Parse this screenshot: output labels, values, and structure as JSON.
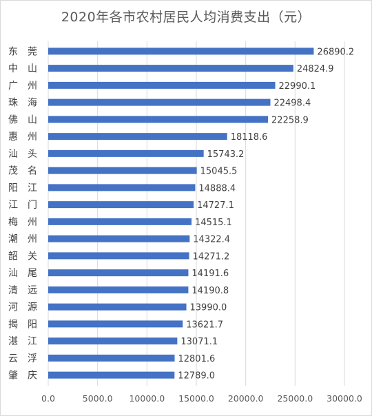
{
  "chart_data": {
    "type": "bar",
    "orientation": "horizontal",
    "title": "2020年各市农村居民人均消费支出（元）",
    "categories": [
      "东　莞",
      "中　山",
      "广　州",
      "珠　海",
      "佛　山",
      "惠　州",
      "汕　头",
      "茂　名",
      "阳　江",
      "江　门",
      "梅　州",
      "潮　州",
      "韶　关",
      "汕　尾",
      "清　远",
      "河　源",
      "揭　阳",
      "湛　江",
      "云　浮",
      "肇　庆"
    ],
    "values": [
      26890.2,
      24824.9,
      22990.1,
      22498.4,
      22258.9,
      18118.6,
      15743.2,
      15045.5,
      14888.4,
      14727.1,
      14515.1,
      14322.4,
      14271.2,
      14191.6,
      14190.8,
      13990.0,
      13621.7,
      13071.1,
      12801.6,
      12789.0
    ],
    "value_labels": [
      "26890.2",
      "24824.9",
      "22990.1",
      "22498.4",
      "22258.9",
      "18118.6",
      "15743.2",
      "15045.5",
      "14888.4",
      "14727.1",
      "14515.1",
      "14322.4",
      "14271.2",
      "14191.6",
      "14190.8",
      "13990.0",
      "13621.7",
      "13071.1",
      "12801.6",
      "12789.0"
    ],
    "xlim": [
      0,
      30000
    ],
    "xticks": [
      "0.0",
      "5000.0",
      "10000.0",
      "15000.0",
      "20000.0",
      "25000.0",
      "30000.0"
    ],
    "xtick_values": [
      0,
      5000,
      10000,
      15000,
      20000,
      25000,
      30000
    ],
    "bar_color": "#4472c4",
    "grid": true,
    "legend": "none"
  }
}
